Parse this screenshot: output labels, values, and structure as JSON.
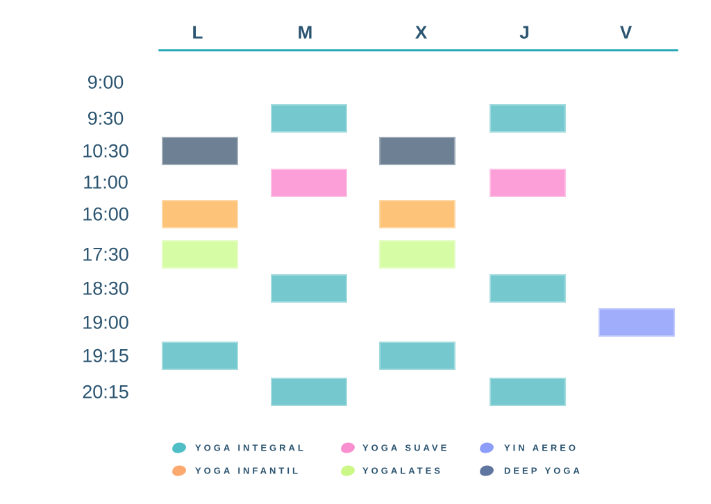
{
  "chart_data": {
    "type": "table",
    "description": "Weekly yoga class timetable",
    "columns": [
      "L",
      "M",
      "X",
      "J",
      "V"
    ],
    "rows": [
      "9:00",
      "9:30",
      "10:30",
      "11:00",
      "16:00",
      "17:30",
      "18:30",
      "19:00",
      "19:15",
      "20:15"
    ],
    "classes": [
      {
        "id": "yoga-integral",
        "label": "YOGA INTEGRAL",
        "block_color": "#74c8ce",
        "legend_color": "#4fbec6"
      },
      {
        "id": "yoga-infantil",
        "label": "YOGA INFANTIL",
        "block_color": "#fdc378",
        "legend_color": "#fba96e"
      },
      {
        "id": "yoga-suave",
        "label": "YOGA SUAVE",
        "block_color": "#fc9ed7",
        "legend_color": "#fa8fd0"
      },
      {
        "id": "yogalates",
        "label": "YOGALATES",
        "block_color": "#d6fca6",
        "legend_color": "#cbf787"
      },
      {
        "id": "yin-aereo",
        "label": "YIN AEREO",
        "block_color": "#9fadfb",
        "legend_color": "#8d9efa"
      },
      {
        "id": "deep-yoga",
        "label": "DEEP YOGA",
        "block_color": "#6e8093",
        "legend_color": "#5f76a0"
      }
    ],
    "blocks": [
      {
        "day": "M",
        "time": "9:30",
        "class": "yoga-integral"
      },
      {
        "day": "J",
        "time": "9:30",
        "class": "yoga-integral"
      },
      {
        "day": "L",
        "time": "10:30",
        "class": "deep-yoga"
      },
      {
        "day": "X",
        "time": "10:30",
        "class": "deep-yoga"
      },
      {
        "day": "M",
        "time": "11:00",
        "class": "yoga-suave"
      },
      {
        "day": "J",
        "time": "11:00",
        "class": "yoga-suave"
      },
      {
        "day": "L",
        "time": "16:00",
        "class": "yoga-infantil"
      },
      {
        "day": "X",
        "time": "16:00",
        "class": "yoga-infantil"
      },
      {
        "day": "L",
        "time": "17:30",
        "class": "yogalates"
      },
      {
        "day": "X",
        "time": "17:30",
        "class": "yogalates"
      },
      {
        "day": "M",
        "time": "18:30",
        "class": "yoga-integral"
      },
      {
        "day": "J",
        "time": "18:30",
        "class": "yoga-integral"
      },
      {
        "day": "V",
        "time": "19:00",
        "class": "yin-aereo"
      },
      {
        "day": "L",
        "time": "19:15",
        "class": "yoga-integral"
      },
      {
        "day": "X",
        "time": "19:15",
        "class": "yoga-integral"
      },
      {
        "day": "M",
        "time": "20:15",
        "class": "yoga-integral"
      },
      {
        "day": "J",
        "time": "20:15",
        "class": "yoga-integral"
      }
    ],
    "legend_columns": [
      [
        "yoga-integral",
        "yoga-infantil"
      ],
      [
        "yoga-suave",
        "yogalates"
      ],
      [
        "yin-aereo",
        "deep-yoga"
      ]
    ],
    "layout_hints": {
      "header_rule_color": "#2aa9b8",
      "text_color": "#2b5470",
      "grid": "off",
      "legend_position": "bottom"
    }
  }
}
